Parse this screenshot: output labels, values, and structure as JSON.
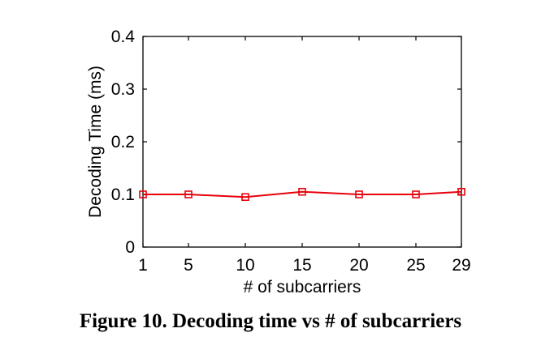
{
  "caption": "Figure 10. Decoding time vs # of subcarriers",
  "chart_data": {
    "type": "line",
    "title": "",
    "xlabel": "# of subcarriers",
    "ylabel": "Decoding Time (ms)",
    "x": [
      1,
      5,
      10,
      15,
      20,
      25,
      29
    ],
    "series": [
      {
        "values": [
          0.1,
          0.1,
          0.095,
          0.105,
          0.1,
          0.1,
          0.105
        ],
        "color": "#e8000b",
        "marker": "square"
      }
    ],
    "xlim": [
      1,
      29
    ],
    "ylim": [
      0,
      0.4
    ],
    "xticks": [
      "1",
      "5",
      "10",
      "15",
      "20",
      "25",
      "29"
    ],
    "xtick_values": [
      1,
      5,
      10,
      15,
      20,
      25,
      29
    ],
    "yticks": [
      "0",
      "0.1",
      "0.2",
      "0.3",
      "0.4"
    ],
    "ytick_values": [
      0,
      0.1,
      0.2,
      0.3,
      0.4
    ],
    "grid": false,
    "legend": "none"
  }
}
